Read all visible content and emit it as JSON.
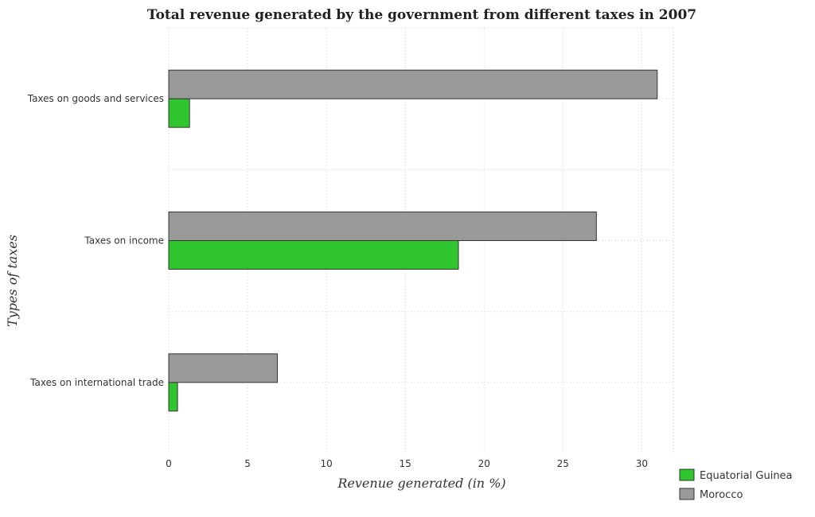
{
  "chart_data": {
    "type": "bar",
    "orientation": "horizontal",
    "title": "Total revenue generated by the government from different taxes in 2007",
    "xlabel": "Revenue generated (in %)",
    "ylabel": "Types of taxes",
    "categories": [
      "Taxes on goods and services",
      "Taxes on income",
      "Taxes on international trade"
    ],
    "series": [
      {
        "name": "Equatorial Guinea",
        "color": "#2ec52e",
        "values": [
          1.32,
          18.37,
          0.56
        ]
      },
      {
        "name": "Morocco",
        "color": "#999999",
        "values": [
          30.98,
          27.12,
          6.89
        ]
      }
    ],
    "xlim": [
      0,
      32
    ],
    "xticks": [
      0,
      5,
      10,
      15,
      20,
      25,
      30
    ],
    "grid": true,
    "legend_position": "bottom-right"
  }
}
